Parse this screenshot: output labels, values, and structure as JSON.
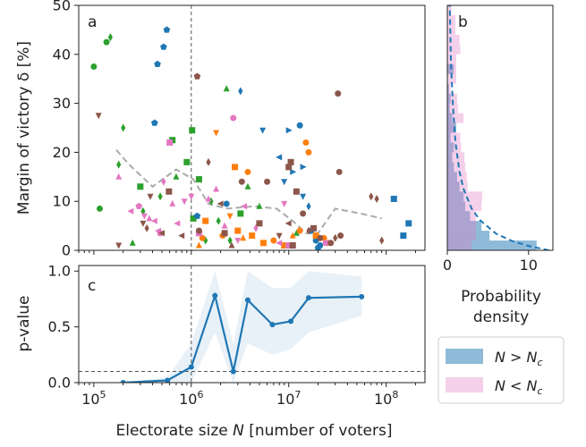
{
  "colors": {
    "green": "#2ca02c",
    "blue": "#1f77b4",
    "orange": "#ff7f0e",
    "pink": "#e377c2",
    "brown": "#8c564b",
    "gray": "#aaaaaa",
    "hist_large": "#1f77b4",
    "hist_small": "#e377c2"
  },
  "chart_data": [
    {
      "panel": "a",
      "type": "scatter",
      "xlabel": "Electorate size N [number of voters]",
      "ylabel": "Margin of victory δ [%]",
      "xscale": "log",
      "xlim": [
        70000,
        250000000
      ],
      "ylim": [
        0,
        50
      ],
      "x_ticks": [
        {
          "v": 100000,
          "base": "10",
          "exp": "5"
        },
        {
          "v": 1000000,
          "base": "10",
          "exp": "6"
        },
        {
          "v": 10000000,
          "base": "10",
          "exp": "7"
        },
        {
          "v": 100000000,
          "base": "10",
          "exp": "8"
        }
      ],
      "y_ticks": [
        0,
        10,
        20,
        30,
        40,
        50
      ],
      "vline_x": 1000000,
      "trend_line": {
        "color": "gray",
        "points": [
          [
            170000,
            20.5
          ],
          [
            230000,
            17.5
          ],
          [
            400000,
            13
          ],
          [
            700000,
            16.5
          ],
          [
            1050000,
            14.5
          ],
          [
            1500000,
            9.5
          ],
          [
            2300000,
            8.5
          ],
          [
            4500000,
            9
          ],
          [
            7500000,
            8.5
          ],
          [
            11000000,
            6
          ],
          [
            15000000,
            3.5
          ],
          [
            20000000,
            3.5
          ],
          [
            30000000,
            8.5
          ],
          [
            55000000,
            7.5
          ],
          [
            90000000,
            6.5
          ]
        ]
      },
      "series": [
        {
          "color": "green",
          "points": [
            [
              100000,
              37.5,
              "o"
            ],
            [
              115000,
              8.5,
              "o"
            ],
            [
              135000,
              42.5,
              "o"
            ],
            [
              148000,
              43.5,
              "d"
            ],
            [
              180000,
              17.5,
              "d"
            ],
            [
              200000,
              25,
              "d"
            ],
            [
              250000,
              1.5,
              "^"
            ],
            [
              300000,
              13,
              "s"
            ],
            [
              320000,
              8,
              "d"
            ],
            [
              480000,
              11,
              "d"
            ],
            [
              640000,
              22.5,
              "s"
            ],
            [
              700000,
              15,
              "^"
            ],
            [
              900000,
              18,
              "s"
            ],
            [
              1020000,
              24.5,
              "s"
            ],
            [
              1050000,
              6.5,
              "s"
            ],
            [
              1200000,
              14.5,
              "s"
            ],
            [
              1400000,
              2,
              "d"
            ],
            [
              1600000,
              10,
              "d"
            ],
            [
              1900000,
              6,
              "d"
            ],
            [
              2300000,
              33,
              "^"
            ],
            [
              2500000,
              2,
              "d"
            ],
            [
              3200000,
              7.5,
              "s"
            ],
            [
              3800000,
              13,
              "^"
            ],
            [
              5000000,
              9,
              "^"
            ],
            [
              12000000,
              3.5,
              "^"
            ]
          ]
        },
        {
          "color": "blue",
          "points": [
            [
              560000,
              45,
              "p"
            ],
            [
              520000,
              41.5,
              "p"
            ],
            [
              450000,
              38,
              "p"
            ],
            [
              420000,
              26,
              "p"
            ],
            [
              1150000,
              7,
              "p"
            ],
            [
              2300000,
              9.5,
              "o"
            ],
            [
              3200000,
              32.5,
              "d"
            ],
            [
              5400000,
              24.5,
              "v"
            ],
            [
              8000000,
              19,
              "<"
            ],
            [
              10000000,
              24.5,
              ">"
            ],
            [
              11000000,
              16,
              ">"
            ],
            [
              13000000,
              25.5,
              "o"
            ],
            [
              14000000,
              17,
              ">"
            ],
            [
              16000000,
              9,
              "d"
            ],
            [
              17000000,
              4,
              "o"
            ],
            [
              19000000,
              2,
              "o"
            ],
            [
              20000000,
              0.5,
              "o"
            ],
            [
              14000000,
              11,
              "v"
            ],
            [
              120000000,
              10.5,
              "s"
            ],
            [
              150000000,
              3,
              "s"
            ],
            [
              170000000,
              5.5,
              "s"
            ],
            [
              9000000,
              14,
              "v"
            ],
            [
              21000000,
              1,
              "o"
            ]
          ]
        },
        {
          "color": "orange",
          "points": [
            [
              1200000,
              1,
              "^"
            ],
            [
              1300000,
              2.5,
              "o"
            ],
            [
              1400000,
              6,
              "s"
            ],
            [
              1800000,
              24,
              "v"
            ],
            [
              2100000,
              3,
              "o"
            ],
            [
              2500000,
              7,
              "v"
            ],
            [
              2800000,
              17,
              "s"
            ],
            [
              3000000,
              4,
              "s"
            ],
            [
              3400000,
              2.5,
              "^"
            ],
            [
              3800000,
              16,
              "o"
            ],
            [
              4200000,
              3,
              "s"
            ],
            [
              5500000,
              1.5,
              "s"
            ],
            [
              7000000,
              2,
              "o"
            ],
            [
              9000000,
              1,
              "s"
            ],
            [
              11000000,
              3,
              "^"
            ],
            [
              13000000,
              4,
              "o"
            ],
            [
              15000000,
              22,
              "o"
            ],
            [
              16000000,
              20,
              "o"
            ],
            [
              19000000,
              3,
              "s"
            ],
            [
              23000000,
              2.5,
              "o"
            ],
            [
              25000000,
              1.5,
              "o"
            ]
          ]
        },
        {
          "color": "pink",
          "points": [
            [
              180000,
              15,
              "^"
            ],
            [
              240000,
              8,
              "<"
            ],
            [
              290000,
              9,
              "p"
            ],
            [
              330000,
              7,
              "v"
            ],
            [
              370000,
              6.5,
              "^"
            ],
            [
              420000,
              6,
              "<"
            ],
            [
              460000,
              4,
              "<"
            ],
            [
              480000,
              3.5,
              "p"
            ],
            [
              520000,
              14,
              "d"
            ],
            [
              600000,
              22,
              "s"
            ],
            [
              640000,
              9.5,
              "^"
            ],
            [
              720000,
              5.5,
              "<"
            ],
            [
              850000,
              10,
              "v"
            ],
            [
              1000000,
              11,
              "v"
            ],
            [
              1200000,
              3.5,
              "s"
            ],
            [
              1500000,
              10.5,
              "^"
            ],
            [
              1800000,
              12.5,
              "^"
            ],
            [
              2200000,
              5,
              "^"
            ],
            [
              2700000,
              27,
              "o"
            ],
            [
              3000000,
              2,
              "v"
            ],
            [
              3500000,
              9,
              "<"
            ],
            [
              4600000,
              4.5,
              "d"
            ],
            [
              8000000,
              1.5,
              "<"
            ],
            [
              9000000,
              9.5,
              "v"
            ],
            [
              10000000,
              1,
              "s"
            ],
            [
              24000000,
              1.5,
              "o"
            ]
          ]
        },
        {
          "color": "brown",
          "points": [
            [
              112000,
              27.5,
              "v"
            ],
            [
              180000,
              1,
              "v"
            ],
            [
              320000,
              5.5,
              "v"
            ],
            [
              350000,
              4.5,
              "d"
            ],
            [
              380000,
              11,
              "v"
            ],
            [
              500000,
              3.5,
              "<"
            ],
            [
              590000,
              12,
              "s"
            ],
            [
              800000,
              3,
              "<"
            ],
            [
              1150000,
              35.5,
              "p"
            ],
            [
              1200000,
              4,
              "o"
            ],
            [
              1500000,
              18,
              "d"
            ],
            [
              2000000,
              9.5,
              "<"
            ],
            [
              2200000,
              3.5,
              "s"
            ],
            [
              2600000,
              1,
              "^"
            ],
            [
              3300000,
              14,
              "o"
            ],
            [
              5000000,
              5.5,
              "s"
            ],
            [
              6000000,
              14,
              "o"
            ],
            [
              8000000,
              3,
              "v"
            ],
            [
              10000000,
              17,
              "s"
            ],
            [
              10500000,
              18,
              "s"
            ],
            [
              10000000,
              5.5,
              "<"
            ],
            [
              11000000,
              1,
              "s"
            ],
            [
              12000000,
              12,
              "s"
            ],
            [
              14000000,
              7.5,
              "o"
            ],
            [
              16000000,
              4,
              "d"
            ],
            [
              18000000,
              4.5,
              "s"
            ],
            [
              21000000,
              2.5,
              "o"
            ],
            [
              27000000,
              1.5,
              "o"
            ],
            [
              30000000,
              2.5,
              "d"
            ],
            [
              32000000,
              32,
              "o"
            ],
            [
              33000000,
              16,
              "o"
            ],
            [
              34000000,
              3,
              "o"
            ],
            [
              70000000,
              11,
              "d"
            ],
            [
              80000000,
              10.5,
              "d"
            ],
            [
              90000000,
              2,
              "d"
            ]
          ]
        }
      ]
    },
    {
      "panel": "b",
      "type": "histogram",
      "xlabel": "Probability density",
      "x_ticks": [
        0,
        10
      ],
      "xlim": [
        0,
        13
      ],
      "bin_edges": [
        0,
        2,
        4,
        6,
        8,
        10,
        12,
        14,
        16,
        18,
        20,
        22,
        24,
        26,
        28,
        30,
        32,
        34,
        36,
        38,
        40,
        42,
        44,
        46,
        48,
        50
      ],
      "hist_large": {
        "legend": "N > Nc",
        "color": "hist_large",
        "densities": [
          11,
          5.2,
          4.2,
          2.8,
          2.2,
          2.0,
          1.5,
          1.2,
          0.8,
          0.6,
          0.8,
          0.4,
          1.1,
          0.6,
          0.3,
          0.4,
          0.2,
          0,
          0.8,
          0,
          0,
          0,
          0,
          0,
          0
        ]
      },
      "hist_small": {
        "legend": "N < Nc",
        "color": "hist_small",
        "densities": [
          3.0,
          3.5,
          3.5,
          3.5,
          4.2,
          4.3,
          2.5,
          2.4,
          2.2,
          2.1,
          1.7,
          1.6,
          1.0,
          2.0,
          1.3,
          1.2,
          0.4,
          1.1,
          1.1,
          1.1,
          1.6,
          1.5,
          1.0,
          1.0,
          0.5
        ]
      },
      "fit_curve": {
        "color": "hist_large",
        "style": "dashed",
        "points": [
          [
            12.5,
            0
          ],
          [
            10,
            0.9
          ],
          [
            8,
            1.9
          ],
          [
            6,
            3.4
          ],
          [
            4,
            6.2
          ],
          [
            3,
            8.5
          ],
          [
            2,
            12.5
          ],
          [
            1.5,
            16
          ],
          [
            1,
            22
          ],
          [
            0.7,
            29
          ],
          [
            0.45,
            38
          ],
          [
            0.3,
            50
          ]
        ]
      }
    },
    {
      "panel": "c",
      "type": "line",
      "xlabel": "Electorate size N [number of voters]",
      "ylabel": "p-value",
      "xscale": "log",
      "xlim": [
        70000,
        250000000
      ],
      "ylim": [
        0,
        1.05
      ],
      "y_ticks": [
        "0.0",
        "0.5",
        "1.0"
      ],
      "hline_y": 0.1,
      "vline_x": 1000000,
      "x": [
        200000,
        570000,
        1000000,
        1750000,
        2700000,
        3800000,
        6800000,
        10500000,
        16000000,
        56000000
      ],
      "y": [
        0.0,
        0.02,
        0.14,
        0.78,
        0.1,
        0.74,
        0.52,
        0.55,
        0.76,
        0.77
      ],
      "band_lower": [
        0.0,
        0.0,
        0.0,
        0.45,
        0.0,
        0.35,
        0.25,
        0.3,
        0.45,
        0.6
      ],
      "band_upper": [
        0.0,
        0.05,
        0.35,
        1.0,
        0.35,
        1.0,
        0.85,
        0.85,
        1.0,
        0.95
      ]
    }
  ],
  "legend": {
    "items": [
      {
        "label": "N > Nc",
        "color": "hist_large"
      },
      {
        "label": "N < Nc",
        "color": "hist_small"
      }
    ]
  }
}
